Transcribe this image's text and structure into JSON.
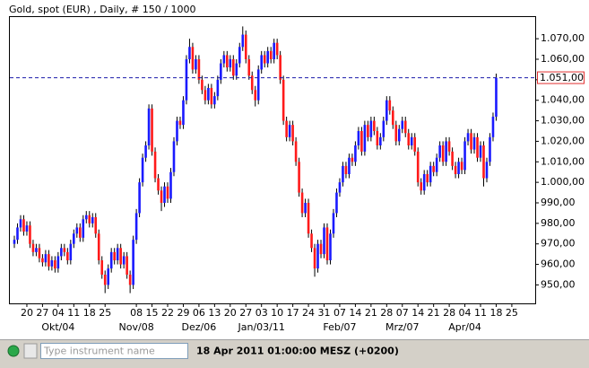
{
  "chart_data": {
    "type": "candlestick",
    "title": "Gold, spot (EUR) , Daily, # 150 / 1000",
    "up_color": "#1a1aff",
    "down_color": "#ff1a1a",
    "ylim": [
      941,
      1081
    ],
    "yticks": [
      {
        "value": 950,
        "label": "950,00"
      },
      {
        "value": 960,
        "label": "960,00"
      },
      {
        "value": 970,
        "label": "970,00"
      },
      {
        "value": 980,
        "label": "980,00"
      },
      {
        "value": 990,
        "label": "990,00"
      },
      {
        "value": 1000,
        "label": "1.000,00"
      },
      {
        "value": 1010,
        "label": "1.010,00"
      },
      {
        "value": 1020,
        "label": "1.020,00"
      },
      {
        "value": 1030,
        "label": "1.030,00"
      },
      {
        "value": 1040,
        "label": "1.040,00"
      },
      {
        "value": 1050,
        "label": "1.050,00"
      },
      {
        "value": 1060,
        "label": "1.060,00"
      },
      {
        "value": 1070,
        "label": "1.070,00"
      }
    ],
    "last_price": {
      "value": 1051,
      "label": "1.051,00"
    },
    "categories": [
      null,
      null,
      null,
      null,
      "20",
      null,
      null,
      null,
      null,
      "27",
      null,
      null,
      null,
      null,
      "04",
      null,
      null,
      null,
      null,
      "11",
      null,
      null,
      null,
      null,
      "18",
      null,
      null,
      null,
      null,
      "25",
      null,
      null,
      null,
      null,
      null,
      null,
      null,
      null,
      null,
      "08",
      null,
      null,
      null,
      null,
      "15",
      null,
      null,
      null,
      null,
      "22",
      null,
      null,
      null,
      null,
      "29",
      null,
      null,
      null,
      null,
      "06",
      null,
      null,
      null,
      null,
      "13",
      null,
      null,
      null,
      null,
      "20",
      null,
      null,
      null,
      null,
      "27",
      null,
      null,
      null,
      null,
      "03",
      null,
      null,
      null,
      null,
      "10",
      null,
      null,
      null,
      null,
      "17",
      null,
      null,
      null,
      null,
      "24",
      null,
      null,
      null,
      null,
      "31",
      null,
      null,
      null,
      null,
      "07",
      null,
      null,
      null,
      null,
      "14",
      null,
      null,
      null,
      null,
      "21",
      null,
      null,
      null,
      null,
      "28",
      null,
      null,
      null,
      null,
      "07",
      null,
      null,
      null,
      null,
      "14",
      null,
      null,
      null,
      null,
      "21",
      null,
      null,
      null,
      null,
      "28",
      null,
      null,
      null,
      null,
      "04",
      null,
      null,
      null,
      null,
      "11",
      null,
      null,
      null,
      null,
      "18",
      null,
      null,
      null,
      null,
      "25"
    ],
    "months": [
      null,
      null,
      null,
      null,
      null,
      null,
      null,
      null,
      null,
      null,
      null,
      null,
      null,
      null,
      "Okt/04",
      null,
      null,
      null,
      null,
      null,
      null,
      null,
      null,
      null,
      null,
      null,
      null,
      null,
      null,
      null,
      null,
      null,
      null,
      null,
      null,
      null,
      null,
      null,
      null,
      "Nov/08",
      null,
      null,
      null,
      null,
      null,
      null,
      null,
      null,
      null,
      null,
      null,
      null,
      null,
      null,
      null,
      null,
      null,
      null,
      null,
      "Dez/06",
      null,
      null,
      null,
      null,
      null,
      null,
      null,
      null,
      null,
      null,
      null,
      null,
      null,
      null,
      null,
      null,
      null,
      null,
      null,
      "Jan/03/11",
      null,
      null,
      null,
      null,
      null,
      null,
      null,
      null,
      null,
      null,
      null,
      null,
      null,
      null,
      null,
      null,
      null,
      null,
      null,
      null,
      null,
      null,
      null,
      null,
      "Feb/07",
      null,
      null,
      null,
      null,
      null,
      null,
      null,
      null,
      null,
      null,
      null,
      null,
      null,
      null,
      null,
      null,
      null,
      null,
      null,
      "Mrz/07",
      null,
      null,
      null,
      null,
      null,
      null,
      null,
      null,
      null,
      null,
      null,
      null,
      null,
      null,
      null,
      null,
      null,
      null,
      null,
      "Apr/04",
      null,
      null,
      null,
      null,
      null,
      null,
      null,
      null,
      null,
      null,
      null,
      null,
      null,
      null,
      null
    ],
    "ohlc": [
      [
        970,
        974,
        968,
        972
      ],
      [
        972,
        980,
        970,
        978
      ],
      [
        978,
        984,
        976,
        982
      ],
      [
        982,
        984,
        974,
        976
      ],
      [
        976,
        981,
        974,
        979
      ],
      [
        979,
        981,
        968,
        970
      ],
      [
        970,
        972,
        964,
        966
      ],
      [
        966,
        970,
        964,
        968
      ],
      [
        968,
        970,
        961,
        963
      ],
      [
        963,
        965,
        959,
        961
      ],
      [
        961,
        967,
        959,
        965
      ],
      [
        965,
        967,
        957,
        959
      ],
      [
        959,
        964,
        957,
        962
      ],
      [
        962,
        964,
        956,
        958
      ],
      [
        958,
        966,
        956,
        964
      ],
      [
        964,
        970,
        962,
        968
      ],
      [
        968,
        970,
        964,
        966
      ],
      [
        966,
        968,
        960,
        962
      ],
      [
        962,
        972,
        960,
        970
      ],
      [
        970,
        977,
        968,
        975
      ],
      [
        975,
        980,
        973,
        978
      ],
      [
        978,
        980,
        971,
        973
      ],
      [
        973,
        984,
        971,
        982
      ],
      [
        982,
        986,
        980,
        984
      ],
      [
        984,
        986,
        978,
        980
      ],
      [
        980,
        985,
        978,
        983
      ],
      [
        983,
        985,
        973,
        975
      ],
      [
        975,
        977,
        960,
        962
      ],
      [
        962,
        964,
        953,
        955
      ],
      [
        955,
        957,
        946,
        950
      ],
      [
        950,
        960,
        948,
        958
      ],
      [
        958,
        968,
        956,
        966
      ],
      [
        966,
        968,
        960,
        962
      ],
      [
        962,
        970,
        960,
        968
      ],
      [
        968,
        970,
        958,
        960
      ],
      [
        960,
        966,
        958,
        964
      ],
      [
        964,
        966,
        953,
        955
      ],
      [
        955,
        957,
        946,
        950
      ],
      [
        950,
        974,
        948,
        972
      ],
      [
        972,
        987,
        970,
        985
      ],
      [
        985,
        1002,
        983,
        1000
      ],
      [
        1000,
        1014,
        998,
        1012
      ],
      [
        1012,
        1020,
        1010,
        1018
      ],
      [
        1018,
        1038,
        1016,
        1036
      ],
      [
        1036,
        1038,
        1013,
        1015
      ],
      [
        1015,
        1017,
        1000,
        1002
      ],
      [
        1002,
        1004,
        994,
        996
      ],
      [
        996,
        998,
        986,
        990
      ],
      [
        990,
        1000,
        988,
        998
      ],
      [
        998,
        1000,
        990,
        992
      ],
      [
        992,
        1007,
        990,
        1005
      ],
      [
        1005,
        1022,
        1003,
        1020
      ],
      [
        1020,
        1032,
        1018,
        1030
      ],
      [
        1030,
        1032,
        1026,
        1028
      ],
      [
        1028,
        1042,
        1026,
        1040
      ],
      [
        1040,
        1062,
        1038,
        1060
      ],
      [
        1060,
        1070,
        1058,
        1066
      ],
      [
        1066,
        1068,
        1053,
        1055
      ],
      [
        1055,
        1062,
        1053,
        1060
      ],
      [
        1060,
        1062,
        1048,
        1050
      ],
      [
        1050,
        1052,
        1043,
        1045
      ],
      [
        1045,
        1047,
        1038,
        1040
      ],
      [
        1040,
        1048,
        1038,
        1046
      ],
      [
        1046,
        1048,
        1036,
        1038
      ],
      [
        1038,
        1044,
        1036,
        1042
      ],
      [
        1042,
        1052,
        1040,
        1050
      ],
      [
        1050,
        1060,
        1048,
        1058
      ],
      [
        1058,
        1064,
        1056,
        1062
      ],
      [
        1062,
        1064,
        1054,
        1056
      ],
      [
        1056,
        1062,
        1054,
        1060
      ],
      [
        1060,
        1062,
        1050,
        1052
      ],
      [
        1052,
        1060,
        1050,
        1058
      ],
      [
        1058,
        1068,
        1056,
        1066
      ],
      [
        1066,
        1076,
        1064,
        1072
      ],
      [
        1072,
        1074,
        1058,
        1060
      ],
      [
        1060,
        1062,
        1050,
        1052
      ],
      [
        1052,
        1054,
        1043,
        1045
      ],
      [
        1045,
        1047,
        1037,
        1040
      ],
      [
        1040,
        1057,
        1038,
        1055
      ],
      [
        1055,
        1064,
        1053,
        1062
      ],
      [
        1062,
        1064,
        1056,
        1058
      ],
      [
        1058,
        1066,
        1056,
        1064
      ],
      [
        1064,
        1066,
        1058,
        1060
      ],
      [
        1060,
        1070,
        1058,
        1068
      ],
      [
        1068,
        1070,
        1060,
        1062
      ],
      [
        1062,
        1064,
        1048,
        1050
      ],
      [
        1050,
        1052,
        1028,
        1030
      ],
      [
        1030,
        1032,
        1020,
        1022
      ],
      [
        1022,
        1030,
        1020,
        1028
      ],
      [
        1028,
        1030,
        1018,
        1020
      ],
      [
        1020,
        1022,
        1008,
        1010
      ],
      [
        1010,
        1012,
        993,
        995
      ],
      [
        995,
        997,
        983,
        985
      ],
      [
        985,
        992,
        983,
        990
      ],
      [
        990,
        992,
        973,
        975
      ],
      [
        975,
        977,
        966,
        968
      ],
      [
        968,
        970,
        954,
        958
      ],
      [
        958,
        972,
        956,
        970
      ],
      [
        970,
        972,
        963,
        965
      ],
      [
        965,
        980,
        963,
        978
      ],
      [
        978,
        980,
        960,
        962
      ],
      [
        962,
        977,
        960,
        975
      ],
      [
        975,
        987,
        973,
        985
      ],
      [
        985,
        997,
        983,
        995
      ],
      [
        995,
        1002,
        993,
        1000
      ],
      [
        1000,
        1010,
        998,
        1008
      ],
      [
        1008,
        1010,
        1002,
        1004
      ],
      [
        1004,
        1014,
        1002,
        1012
      ],
      [
        1012,
        1014,
        1008,
        1010
      ],
      [
        1010,
        1020,
        1008,
        1018
      ],
      [
        1018,
        1027,
        1016,
        1025
      ],
      [
        1025,
        1027,
        1013,
        1015
      ],
      [
        1015,
        1030,
        1013,
        1028
      ],
      [
        1028,
        1030,
        1020,
        1022
      ],
      [
        1022,
        1032,
        1020,
        1030
      ],
      [
        1030,
        1032,
        1023,
        1025
      ],
      [
        1025,
        1027,
        1016,
        1018
      ],
      [
        1018,
        1024,
        1016,
        1022
      ],
      [
        1022,
        1032,
        1020,
        1030
      ],
      [
        1030,
        1042,
        1028,
        1040
      ],
      [
        1040,
        1042,
        1033,
        1035
      ],
      [
        1035,
        1037,
        1026,
        1028
      ],
      [
        1028,
        1030,
        1018,
        1020
      ],
      [
        1020,
        1028,
        1018,
        1026
      ],
      [
        1026,
        1032,
        1024,
        1030
      ],
      [
        1030,
        1032,
        1022,
        1024
      ],
      [
        1024,
        1026,
        1016,
        1018
      ],
      [
        1018,
        1024,
        1016,
        1022
      ],
      [
        1022,
        1024,
        1013,
        1015
      ],
      [
        1015,
        1017,
        998,
        1000
      ],
      [
        1000,
        1002,
        994,
        996
      ],
      [
        996,
        1006,
        994,
        1004
      ],
      [
        1004,
        1006,
        998,
        1000
      ],
      [
        1000,
        1010,
        998,
        1008
      ],
      [
        1008,
        1010,
        1003,
        1005
      ],
      [
        1005,
        1014,
        1003,
        1012
      ],
      [
        1012,
        1020,
        1010,
        1018
      ],
      [
        1018,
        1020,
        1008,
        1010
      ],
      [
        1010,
        1022,
        1008,
        1020
      ],
      [
        1020,
        1022,
        1013,
        1015
      ],
      [
        1015,
        1017,
        1006,
        1008
      ],
      [
        1008,
        1010,
        1002,
        1004
      ],
      [
        1004,
        1012,
        1002,
        1010
      ],
      [
        1010,
        1012,
        1004,
        1006
      ],
      [
        1006,
        1022,
        1004,
        1020
      ],
      [
        1020,
        1026,
        1018,
        1024
      ],
      [
        1024,
        1026,
        1014,
        1016
      ],
      [
        1016,
        1024,
        1014,
        1022
      ],
      [
        1022,
        1024,
        1010,
        1012
      ],
      [
        1012,
        1020,
        1010,
        1018
      ],
      [
        1018,
        1020,
        998,
        1002
      ],
      [
        1002,
        1012,
        1000,
        1010
      ],
      [
        1010,
        1024,
        1008,
        1022
      ],
      [
        1022,
        1034,
        1020,
        1032
      ],
      [
        1032,
        1053,
        1030,
        1051
      ],
      null,
      null,
      null,
      null,
      null
    ]
  },
  "toolbar": {
    "search_placeholder": "Type instrument name",
    "datetime": "18 Apr 2011 01:00:00  MESZ (+0200)"
  }
}
